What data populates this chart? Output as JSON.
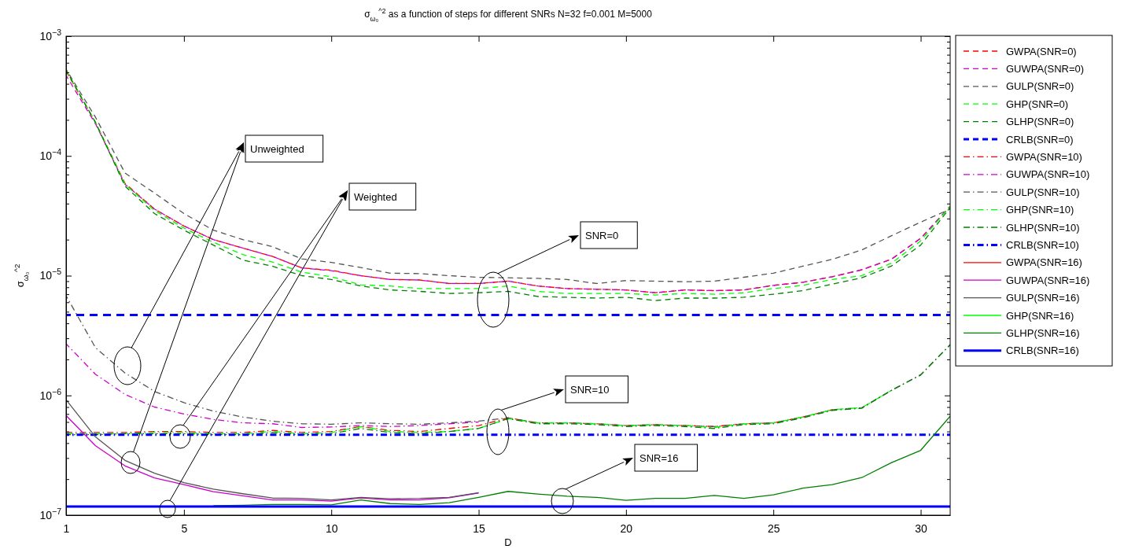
{
  "chart_data": {
    "type": "line",
    "title": "σ$_{ω₀}$$^{^2}$ as a function of steps for different SNRs N=32 f=0.001 M=5000",
    "xlabel": "D",
    "ylabel": "σ$_{ω₀}$$^{^2}$",
    "log": "y",
    "legend": "right",
    "x": [
      1,
      2,
      3,
      4,
      5,
      6,
      7,
      8,
      9,
      10,
      11,
      12,
      13,
      14,
      15,
      16,
      17,
      18,
      19,
      20,
      21,
      22,
      23,
      24,
      25,
      26,
      27,
      28,
      29,
      30,
      31
    ],
    "xlim": [
      1,
      31
    ],
    "xticks": [
      1,
      5,
      10,
      15,
      20,
      25,
      30
    ],
    "ylim": [
      1e-07,
      0.001
    ],
    "yticks": [
      {
        "value": 1e-07,
        "label": "10$^{−7}$"
      },
      {
        "value": 2e-07,
        "label": null
      },
      {
        "value": 3e-07,
        "label": null
      },
      {
        "value": 4e-07,
        "label": null
      },
      {
        "value": 5e-07,
        "label": null
      },
      {
        "value": 6e-07,
        "label": null
      },
      {
        "value": 7e-07,
        "label": null
      },
      {
        "value": 8e-07,
        "label": null
      },
      {
        "value": 9e-07,
        "label": null
      },
      {
        "value": 1e-06,
        "label": "10$^{−6}$"
      },
      {
        "value": 2e-06,
        "label": null
      },
      {
        "value": 3e-06,
        "label": null
      },
      {
        "value": 4e-06,
        "label": null
      },
      {
        "value": 5e-06,
        "label": null
      },
      {
        "value": 6e-06,
        "label": null
      },
      {
        "value": 7e-06,
        "label": null
      },
      {
        "value": 8e-06,
        "label": null
      },
      {
        "value": 9e-06,
        "label": null
      },
      {
        "value": 1e-05,
        "label": "10$^{−5}$"
      },
      {
        "value": 2e-05,
        "label": null
      },
      {
        "value": 3e-05,
        "label": null
      },
      {
        "value": 4e-05,
        "label": null
      },
      {
        "value": 5e-05,
        "label": null
      },
      {
        "value": 6e-05,
        "label": null
      },
      {
        "value": 7e-05,
        "label": null
      },
      {
        "value": 8e-05,
        "label": null
      },
      {
        "value": 9e-05,
        "label": null
      },
      {
        "value": 0.0001,
        "label": "10$^{−4}$"
      },
      {
        "value": 0.0002,
        "label": null
      },
      {
        "value": 0.0003,
        "label": null
      },
      {
        "value": 0.0004,
        "label": null
      },
      {
        "value": 0.0005,
        "label": null
      },
      {
        "value": 0.0006,
        "label": null
      },
      {
        "value": 0.0007,
        "label": null
      },
      {
        "value": 0.0008,
        "label": null
      },
      {
        "value": 0.0009,
        "label": null
      },
      {
        "value": 0.001,
        "label": "10$^{−3}$"
      }
    ],
    "annotations": [
      "Unweighted",
      "Weighted",
      "SNR=0",
      "SNR=10",
      "SNR=16"
    ],
    "series": [
      {
        "name": "GWPA(SNR=0)",
        "color": "#ff0000",
        "line_style": "dashed",
        "values": [
          0.00051,
          0.00019,
          5.9e-05,
          3.6e-05,
          2.6e-05,
          2e-05,
          1.7e-05,
          1.45e-05,
          1.16e-05,
          1.11e-05,
          1e-05,
          9.3e-06,
          9.2e-06,
          8.6e-06,
          8.6e-06,
          9e-06,
          8.2e-06,
          7.8e-06,
          7.7e-06,
          7.6e-06,
          7.2e-06,
          7.6e-06,
          7.5e-06,
          7.6e-06,
          8.3e-06,
          8.8e-06,
          9.8e-06,
          1.12e-05,
          1.37e-05,
          2.05e-05,
          3.8e-05
        ]
      },
      {
        "name": "GUWPA(SNR=0)",
        "color": "#cc00cc",
        "line_style": "dashed",
        "values": [
          0.00047,
          0.000185,
          5.8e-05,
          3.6e-05,
          2.6e-05,
          2e-05,
          1.7e-05,
          1.45e-05,
          1.16e-05,
          1.1e-05,
          1e-05,
          9.3e-06,
          9.2e-06,
          8.6e-06,
          8.6e-06,
          9e-06,
          8.2e-06,
          7.8e-06,
          7.7e-06,
          7.6e-06,
          7.2e-06,
          7.6e-06,
          7.5e-06,
          7.6e-06,
          8.3e-06,
          8.8e-06,
          9.8e-06,
          1.12e-05,
          1.37e-05,
          2.05e-05,
          3.8e-05
        ]
      },
      {
        "name": "GULP(SNR=0)",
        "color": "#555555",
        "line_style": "dashed",
        "values": [
          0.00053,
          0.00021,
          7.2e-05,
          4.9e-05,
          3.3e-05,
          2.4e-05,
          2e-05,
          1.75e-05,
          1.38e-05,
          1.29e-05,
          1.17e-05,
          1.05e-05,
          1.04e-05,
          1e-05,
          9.7e-06,
          9.6e-06,
          9.5e-06,
          9.3e-06,
          8.6e-06,
          9.1e-06,
          9e-06,
          8.9e-06,
          9e-06,
          9.7e-06,
          1.05e-05,
          1.2e-05,
          1.37e-05,
          1.64e-05,
          2.15e-05,
          2.8e-05,
          3.6e-05
        ]
      },
      {
        "name": "GHP(SNR=0)",
        "color": "#00ff00",
        "line_style": "dashed",
        "values": [
          0.00052,
          0.00019,
          5.8e-05,
          3.5e-05,
          2.5e-05,
          1.9e-05,
          1.5e-05,
          1.3e-05,
          1.07e-05,
          9.8e-06,
          8.4e-06,
          8.2e-06,
          7.8e-06,
          7.8e-06,
          7.8e-06,
          8.2e-06,
          7.4e-06,
          7.1e-06,
          7.1e-06,
          7.1e-06,
          6.9e-06,
          7.1e-06,
          7e-06,
          7.2e-06,
          7.8e-06,
          8.3e-06,
          9.3e-06,
          1e-05,
          1.27e-05,
          1.95e-05,
          3.8e-05
        ]
      },
      {
        "name": "GLHP(SNR=0)",
        "color": "#008000",
        "line_style": "dashed",
        "values": [
          0.00052,
          0.00019,
          5.6e-05,
          3.3e-05,
          2.4e-05,
          1.8e-05,
          1.35e-05,
          1.2e-05,
          1e-05,
          9.3e-06,
          8.2e-06,
          7.6e-06,
          7.4e-06,
          7.1e-06,
          7.2e-06,
          7.4e-06,
          6.7e-06,
          6.6e-06,
          6.5e-06,
          6.6e-06,
          6.2e-06,
          6.5e-06,
          6.5e-06,
          6.6e-06,
          7e-06,
          7.5e-06,
          8.5e-06,
          9.6e-06,
          1.2e-05,
          1.8e-05,
          3.7e-05
        ]
      },
      {
        "name": "CRLB(SNR=0)",
        "color": "#0000ff",
        "line_style": "dashed",
        "values": [
          4.7e-06,
          4.7e-06,
          4.7e-06,
          4.7e-06,
          4.7e-06,
          4.7e-06,
          4.7e-06,
          4.7e-06,
          4.7e-06,
          4.7e-06,
          4.7e-06,
          4.7e-06,
          4.7e-06,
          4.7e-06,
          4.7e-06,
          4.7e-06,
          4.7e-06,
          4.7e-06,
          4.7e-06,
          4.7e-06,
          4.7e-06,
          4.7e-06,
          4.7e-06,
          4.7e-06,
          4.7e-06,
          4.7e-06,
          4.7e-06,
          4.7e-06,
          4.7e-06,
          4.7e-06,
          4.7e-06
        ]
      },
      {
        "name": "GWPA(SNR=10)",
        "color": "#ff0000",
        "line_style": "dashdot",
        "values": [
          4.9e-07,
          4.9e-07,
          4.9e-07,
          5e-07,
          5e-07,
          4.9e-07,
          4.9e-07,
          5.1e-07,
          4.9e-07,
          5e-07,
          5.5e-07,
          5.1e-07,
          5e-07,
          5.3e-07,
          5.6e-07,
          6.5e-07,
          5.9e-07,
          5.9e-07,
          5.8e-07,
          5.6e-07,
          5.7e-07,
          5.6e-07,
          5.5e-07,
          5.8e-07,
          5.9e-07,
          6.6e-07,
          7.6e-07,
          null,
          null,
          null,
          null
        ]
      },
      {
        "name": "GUWPA(SNR=10)",
        "color": "#cc00cc",
        "line_style": "dashdot",
        "values": [
          2.7e-06,
          1.5e-06,
          1.02e-06,
          8e-07,
          7e-07,
          6.3e-07,
          5.9e-07,
          5.8e-07,
          5.4e-07,
          5.45e-07,
          5.6e-07,
          5.5e-07,
          5.6e-07,
          5.8e-07,
          6e-07,
          null,
          null,
          null,
          null,
          null,
          null,
          null,
          null,
          null,
          null,
          null,
          null,
          null,
          null,
          null,
          null
        ]
      },
      {
        "name": "GULP(SNR=10)",
        "color": "#555555",
        "line_style": "dashdot",
        "values": [
          6.8e-06,
          2.5e-06,
          1.54e-06,
          1.08e-06,
          8.7e-07,
          7.4e-07,
          6.6e-07,
          6.1e-07,
          5.8e-07,
          5.75e-07,
          5.9e-07,
          5.8e-07,
          5.75e-07,
          5.9e-07,
          6.1e-07,
          6.5e-07,
          5.9e-07,
          5.9e-07,
          5.8e-07,
          5.6e-07,
          5.7e-07,
          5.6e-07,
          5.5e-07,
          5.8e-07,
          5.9e-07,
          6.6e-07,
          7.6e-07,
          7.9e-07,
          1.1e-06,
          1.49e-06,
          2.65e-06
        ]
      },
      {
        "name": "GHP(SNR=10)",
        "color": "#00ff00",
        "line_style": "dashdot",
        "values": [
          4.8e-07,
          4.8e-07,
          4.8e-07,
          4.9e-07,
          4.9e-07,
          4.8e-07,
          4.8e-07,
          5e-07,
          4.8e-07,
          4.9e-07,
          5.5e-07,
          5e-07,
          4.9e-07,
          5e-07,
          5.3e-07,
          6.4e-07,
          5.9e-07,
          5.9e-07,
          5.8e-07,
          5.6e-07,
          5.7e-07,
          5.6e-07,
          5.4e-07,
          5.8e-07,
          5.9e-07,
          6.6e-07,
          7.6e-07,
          7.9e-07,
          1.1e-06,
          null,
          null
        ]
      },
      {
        "name": "GLHP(SNR=10)",
        "color": "#008000",
        "line_style": "dashdot",
        "values": [
          4.7e-07,
          4.7e-07,
          4.8e-07,
          4.8e-07,
          4.8e-07,
          4.7e-07,
          4.7e-07,
          4.9e-07,
          4.7e-07,
          4.8e-07,
          5.3e-07,
          4.9e-07,
          4.8e-07,
          5e-07,
          5.3e-07,
          6.4e-07,
          5.8e-07,
          5.8e-07,
          5.7e-07,
          5.5e-07,
          5.6e-07,
          5.5e-07,
          5.3e-07,
          5.7e-07,
          5.8e-07,
          6.5e-07,
          7.5e-07,
          7.8e-07,
          1.1e-06,
          1.48e-06,
          2.65e-06
        ]
      },
      {
        "name": "CRLB(SNR=10)",
        "color": "#0000ff",
        "line_style": "dashdot",
        "values": [
          4.7e-07,
          4.7e-07,
          4.7e-07,
          4.7e-07,
          4.7e-07,
          4.7e-07,
          4.7e-07,
          4.7e-07,
          4.7e-07,
          4.7e-07,
          4.7e-07,
          4.7e-07,
          4.7e-07,
          4.7e-07,
          4.7e-07,
          4.7e-07,
          4.7e-07,
          4.7e-07,
          4.7e-07,
          4.7e-07,
          4.7e-07,
          4.7e-07,
          4.7e-07,
          4.7e-07,
          4.7e-07,
          4.7e-07,
          4.7e-07,
          4.7e-07,
          4.7e-07,
          4.7e-07,
          4.7e-07
        ]
      },
      {
        "name": "GWPA(SNR=16)",
        "color": "#ff0000",
        "line_style": "solid",
        "values": [
          null,
          null,
          null,
          null,
          null,
          null,
          null,
          null,
          null,
          null,
          null,
          null,
          null,
          null,
          null,
          null,
          null,
          null,
          null,
          null,
          null,
          null,
          null,
          null,
          null,
          null,
          null,
          null,
          null,
          null,
          null
        ]
      },
      {
        "name": "GUWPA(SNR=16)",
        "color": "#cc00cc",
        "line_style": "solid",
        "values": [
          6.8e-07,
          3.8e-07,
          2.58e-07,
          2.05e-07,
          1.8e-07,
          1.57e-07,
          1.45e-07,
          1.34e-07,
          1.34e-07,
          1.31e-07,
          1.39e-07,
          1.34e-07,
          1.34e-07,
          1.4e-07,
          1.53e-07,
          null,
          null,
          null,
          null,
          null,
          null,
          null,
          null,
          null,
          null,
          null,
          null,
          null,
          null,
          null,
          null
        ]
      },
      {
        "name": "GULP(SNR=16)",
        "color": "#555555",
        "line_style": "solid",
        "values": [
          9.2e-07,
          4.5e-07,
          2.87e-07,
          2.24e-07,
          1.87e-07,
          1.65e-07,
          1.51e-07,
          1.39e-07,
          1.38e-07,
          1.34e-07,
          1.41e-07,
          1.37e-07,
          1.38e-07,
          1.41e-07,
          1.54e-07,
          null,
          null,
          null,
          null,
          null,
          null,
          null,
          null,
          null,
          null,
          null,
          null,
          null,
          null,
          null,
          null
        ]
      },
      {
        "name": "GHP(SNR=16)",
        "color": "#00ff00",
        "line_style": "solid",
        "values": [
          null,
          null,
          null,
          null,
          null,
          null,
          null,
          null,
          null,
          null,
          null,
          null,
          null,
          null,
          null,
          null,
          null,
          null,
          null,
          null,
          null,
          null,
          null,
          null,
          null,
          null,
          null,
          null,
          null,
          null,
          null
        ]
      },
      {
        "name": "GLHP(SNR=16)",
        "color": "#008000",
        "line_style": "solid",
        "values": [
          null,
          null,
          null,
          null,
          null,
          1.2e-07,
          1.21e-07,
          1.23e-07,
          1.23e-07,
          1.22e-07,
          1.34e-07,
          1.25e-07,
          1.23e-07,
          1.27e-07,
          1.41e-07,
          1.58e-07,
          1.5e-07,
          1.44e-07,
          1.41e-07,
          1.33e-07,
          1.38e-07,
          1.38e-07,
          1.46e-07,
          1.38e-07,
          1.48e-07,
          1.68e-07,
          1.8e-07,
          2.06e-07,
          2.74e-07,
          3.48e-07,
          6.7e-07
        ]
      },
      {
        "name": "CRLB(SNR=16)",
        "color": "#0000ff",
        "line_style": "solid",
        "values": [
          1.18e-07,
          1.18e-07,
          1.18e-07,
          1.18e-07,
          1.18e-07,
          1.18e-07,
          1.18e-07,
          1.18e-07,
          1.18e-07,
          1.18e-07,
          1.18e-07,
          1.18e-07,
          1.18e-07,
          1.18e-07,
          1.18e-07,
          1.18e-07,
          1.18e-07,
          1.18e-07,
          1.18e-07,
          1.18e-07,
          1.18e-07,
          1.18e-07,
          1.18e-07,
          1.18e-07,
          1.18e-07,
          1.18e-07,
          1.18e-07,
          1.18e-07,
          1.18e-07,
          1.18e-07,
          1.18e-07
        ]
      }
    ]
  }
}
